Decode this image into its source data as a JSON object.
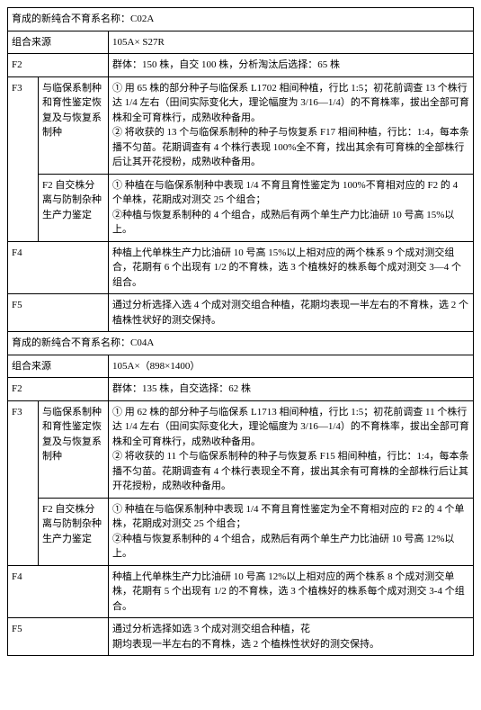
{
  "blocks": [
    {
      "title": "育成的新纯合不育系名称：C02A",
      "source_label": "组合来源",
      "source_value": "105A× S27R",
      "f2_label": "F2",
      "f2_value": "群体：150 株，自交 100 株，分析淘汰后选择：65 株",
      "f3_label": "F3",
      "f3_subs": [
        {
          "label": "与临保系制种和育性鉴定恢复及与恢复系制种",
          "value": "① 用 65 株的部分种子与临保系 L1702 相间种植，行比 1:5；初花前调查 13 个株行达 1/4 左右（田间实际变化大，理论幅度为 3/16—1/4）的不育株率，拔出全部可育株和全可育株行，成熟收种备用。\n② 将收获的 13 个与临保系制种的种子与恢复系 F17 相间种植，行比：1:4，每本条播不匀苗。花期调查有 4 个株行表现 100%全不育，找出其余有可育株的全部株行后让其开花授粉，成熟收种备用。"
        },
        {
          "label": "F2 自交株分离与防制杂种生产力鉴定",
          "value": "① 种植在与临保系制种中表现 1/4 不育且育性鉴定为 100%不育相对应的 F2 的 4 个单株，花期成对测交 25 个组合；\n②种植与恢复系制种的 4 个组合，成熟后有两个单生产力比油研 10 号高 15%以上。"
        }
      ],
      "f4_label": "F4",
      "f4_value": "种植上代单株生产力比油研 10 号高 15%以上相对应的两个株系 9 个成对测交组合，花期有 6 个出现有 1/2 的不育株，选 3 个植株好的株系每个成对测交 3—4 个组合。",
      "f5_label": "F5",
      "f5_value": "通过分析选择入选 4 个成对测交组合种植，花期均表现一半左右的不育株，选 2 个植株性状好的测交保持。"
    },
    {
      "title": "育成的新纯合不育系名称：C04A",
      "source_label": "组合来源",
      "source_value": "105A×（898×1400）",
      "f2_label": "F2",
      "f2_value": "群体：135 株，自交选择：62 株",
      "f3_label": "F3",
      "f3_subs": [
        {
          "label": "与临保系制种和育性鉴定恢复及与恢复系制种",
          "value": "① 用 62 株的部分种子与临保系 L1713 相间种植，行比 1:5；初花前调查 11 个株行达 1/4 左右（田间实际变化大，理论幅度为 3/16—1/4）的不育株率，拔出全部可育株和全可育株行，成熟收种备用。\n② 将收获的 11 个与临保系制种的种子与恢复系 F15 相间种植，行比：1:4，每本条播不匀苗。花期调查有 4 个株行表现全不育，拔出其余有可育株的全部株行后让其开花授粉，成熟收种备用。"
        },
        {
          "label": "F2 自交株分离与防制杂种生产力鉴定",
          "value": "① 种植在与临保系制种中表现 1/4 不育且育性鉴定为全不育相对应的 F2 的 4 个单株，花期成对测交 25 个组合；\n②种植与恢复系制种的 4 个组合，成熟后有两个单生产力比油研 10 号高 12%以上。"
        }
      ],
      "f4_label": "F4",
      "f4_value": "种植上代单株生产力比油研 10 号高 12%以上相对应的两个株系 8 个成对测交单株，花期有 5 个出现有 1/2 的不育株，选 3 个植株好的株系每个成对测交 3-4 个组合。",
      "f5_label": "F5",
      "f5_value": "通过分析选择如选 3 个成对测交组合种植，花\n期均表现一半左右的不育株，选 2 个植株性状好的测交保持。"
    }
  ]
}
